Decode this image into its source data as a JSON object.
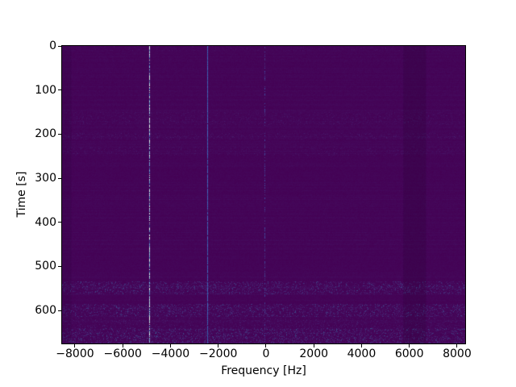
{
  "figure": {
    "background": "#ffffff"
  },
  "chart_data": {
    "type": "heatmap",
    "subtype": "spectrogram_waterfall",
    "title": "",
    "xlabel": "Frequency [Hz]",
    "ylabel": "Time [s]",
    "xlim_hz": [
      -8540,
      8340
    ],
    "ylim_s": [
      0,
      675
    ],
    "y_axis_inverted_time_at_top": true,
    "xticks_hz": [
      -8000,
      -6000,
      -4000,
      -2000,
      0,
      2000,
      4000,
      6000,
      8000
    ],
    "xtick_labels": [
      "−8000",
      "−6000",
      "−4000",
      "−2000",
      "0",
      "2000",
      "4000",
      "6000",
      "8000"
    ],
    "yticks_s": [
      0,
      100,
      200,
      300,
      400,
      500,
      600
    ],
    "ytick_labels": [
      "0",
      "100",
      "200",
      "300",
      "400",
      "500",
      "600"
    ],
    "colormap": "viridis",
    "background_color_low": "#440154",
    "grid": false,
    "legend": false,
    "colorbar": false,
    "carrier_lines": [
      {
        "freq_hz": -4890,
        "appearance": "bright speckled cyan-white dashed line",
        "palette": [
          "#3a5fb0",
          "#6090cb",
          "#93c2d8",
          "#c6e4de",
          "#ecf7f0"
        ],
        "gap_probability": 0.14
      },
      {
        "freq_hz": -2460,
        "appearance": "solid medium blue line",
        "palette": [
          "#35549f",
          "#3d5fb2",
          "#4568bb"
        ],
        "gap_probability": 0.04
      },
      {
        "freq_hz": -60,
        "appearance": "faint dotted dark blue line",
        "palette": [
          "#46307c",
          "#40459a"
        ],
        "gap_probability": 0.55
      }
    ],
    "noise_bands_time_s": [
      {
        "start": 0,
        "end": 10,
        "strength": 0.1
      },
      {
        "start": 150,
        "end": 178,
        "strength": 0.14
      },
      {
        "start": 196,
        "end": 212,
        "strength": 0.17
      },
      {
        "start": 228,
        "end": 248,
        "strength": 0.13
      },
      {
        "start": 533,
        "end": 563,
        "strength": 0.45
      },
      {
        "start": 584,
        "end": 614,
        "strength": 0.42
      },
      {
        "start": 616,
        "end": 640,
        "strength": 0.2
      },
      {
        "start": 640,
        "end": 675,
        "strength": 0.48
      }
    ],
    "dark_columns_hz": [
      {
        "start": 5750,
        "end": 6700,
        "opacity": 0.16
      },
      {
        "start": -8540,
        "end": -8150,
        "opacity": 0.1
      }
    ]
  }
}
